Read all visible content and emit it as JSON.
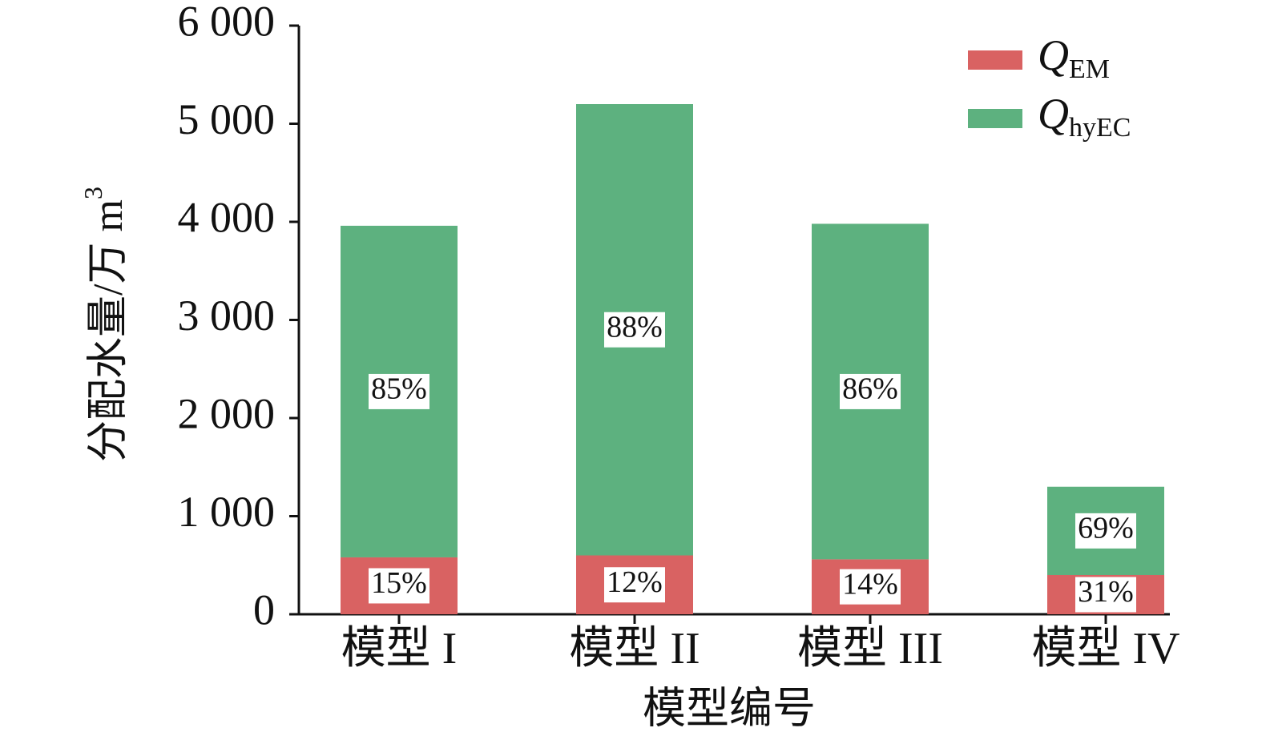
{
  "chart_data": {
    "type": "stacked_bar",
    "ylabel": "分配水量/万 m",
    "ylabel_sup": "3",
    "xlabel": "模型编号",
    "categories": [
      "模型 I",
      "模型 II",
      "模型 III",
      "模型 IV"
    ],
    "series": [
      {
        "name_symbol": "Q",
        "name_subscript": "EM",
        "color": "#d96262",
        "values": [
          580,
          600,
          560,
          400
        ],
        "labels": [
          "15%",
          "12%",
          "14%",
          "31%"
        ]
      },
      {
        "name_symbol": "Q",
        "name_subscript": "hyEC",
        "color": "#5db17f",
        "values": [
          3380,
          4600,
          3420,
          900
        ],
        "labels": [
          "85%",
          "88%",
          "86%",
          "69%"
        ]
      }
    ],
    "ylim": [
      0,
      6000
    ],
    "yticks": [
      0,
      {
        "value": 1000,
        "label": "1 000"
      },
      {
        "value": 2000,
        "label": "2 000"
      },
      {
        "value": 3000,
        "label": "3 000"
      },
      {
        "value": 4000,
        "label": "4 000"
      },
      {
        "value": 5000,
        "label": "5 000"
      },
      {
        "value": 6000,
        "label": "6 000"
      }
    ],
    "legend": "upper right"
  }
}
